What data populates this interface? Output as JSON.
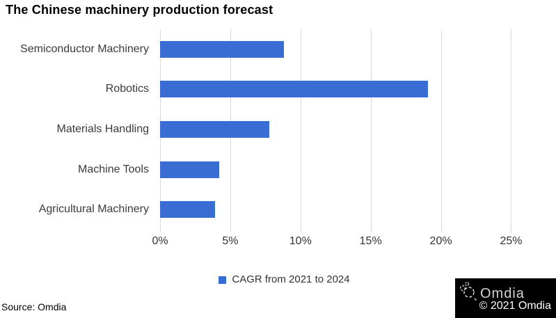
{
  "title": "The Chinese machinery production forecast",
  "chart_data": {
    "type": "bar",
    "orientation": "horizontal",
    "title": "The Chinese machinery production forecast",
    "categories": [
      "Semiconductor Machinery",
      "Robotics",
      "Materials Handling",
      "Machine Tools",
      "Agricultural Machinery"
    ],
    "values": [
      8.8,
      19.1,
      7.8,
      4.2,
      3.9
    ],
    "unit": "%",
    "x_ticks": [
      "0%",
      "5%",
      "10%",
      "15%",
      "20%",
      "25%"
    ],
    "x_tick_values": [
      0,
      5,
      10,
      15,
      20,
      25
    ],
    "x_max": 28,
    "xlabel": "",
    "ylabel": "",
    "grid": "vertical",
    "legend": "CAGR from 2021 to 2024",
    "legend_position": "bottom",
    "bar_color": "#3a6dd4",
    "gridline_color": "#d9d9d9"
  },
  "footer": {
    "source": "Source: Omdia",
    "brand": "Omdia",
    "copyright": "© 2021 Omdia"
  }
}
